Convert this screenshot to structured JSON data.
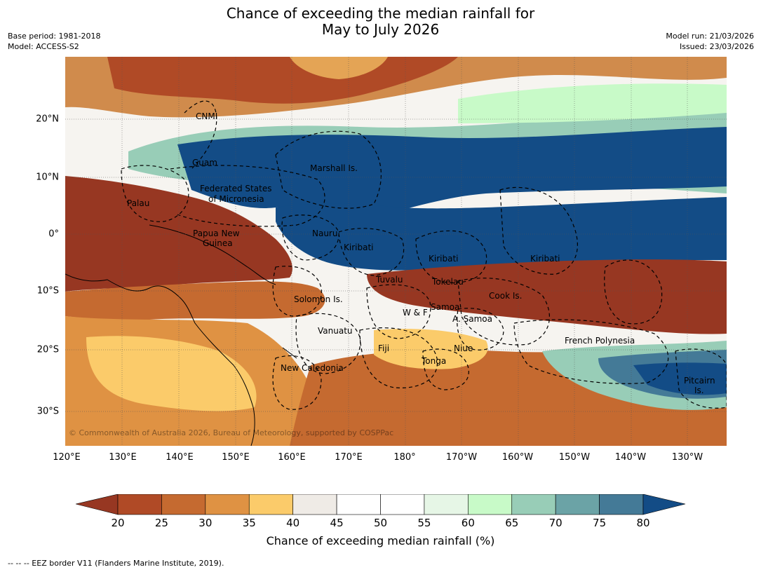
{
  "title": {
    "line1": "Chance of exceeding the median rainfall for",
    "line2": "May to July 2026"
  },
  "meta": {
    "base_period": "Base period: 1981-2018",
    "model": "Model: ACCESS-S2",
    "model_run": "Model run: 21/03/2026",
    "issued": "Issued: 23/03/2026"
  },
  "map": {
    "lon_labels": [
      "120°E",
      "130°E",
      "140°E",
      "150°E",
      "160°E",
      "170°E",
      "180°",
      "170°W",
      "160°W",
      "150°W",
      "140°W",
      "130°W"
    ],
    "lat_labels": [
      "20°N",
      "10°N",
      "0°",
      "10°S",
      "20°S",
      "30°S"
    ],
    "regions": [
      {
        "name": "CNMI"
      },
      {
        "name": "Guam"
      },
      {
        "name": "Marshall Is."
      },
      {
        "name": "Federated States",
        "line2": "of Micronesia"
      },
      {
        "name": "Palau"
      },
      {
        "name": "Papua New",
        "line2": "Guinea"
      },
      {
        "name": "Nauru"
      },
      {
        "name": "Kiribati"
      },
      {
        "name": "Kiribati"
      },
      {
        "name": "Kiribati"
      },
      {
        "name": "Tuvalu"
      },
      {
        "name": "Tokelau"
      },
      {
        "name": "Cook Is."
      },
      {
        "name": "Solomon Is."
      },
      {
        "name": "W & F"
      },
      {
        "name": "Samoa"
      },
      {
        "name": "A. Samoa"
      },
      {
        "name": "Vanuatu"
      },
      {
        "name": "Fiji"
      },
      {
        "name": "Niue"
      },
      {
        "name": "French Polynesia"
      },
      {
        "name": "Tonga"
      },
      {
        "name": "New Caledonia"
      },
      {
        "name": "Pitcairn",
        "line2": "Is."
      }
    ],
    "copyright": "© Commonwealth of Australia 2026, Bureau of Meteorology, supported by COSPPac"
  },
  "colorbar": {
    "ticks": [
      "20",
      "25",
      "30",
      "35",
      "40",
      "45",
      "50",
      "55",
      "60",
      "65",
      "70",
      "75",
      "80"
    ],
    "colors": [
      "#b04a26",
      "#c56a30",
      "#df9243",
      "#fbcb6a",
      "#efebe6",
      "#ffffff",
      "#ffffff",
      "#e6f6e6",
      "#c8fac8",
      "#98cdb7",
      "#6ba3a6",
      "#447a97"
    ],
    "low_extend_color": "#973722",
    "high_extend_color": "#134c86",
    "label": "Chance of exceeding median rainfall (%)"
  },
  "footnote": "--  --  -- EEZ border V11 (Flanders Marine Institute, 2019)."
}
